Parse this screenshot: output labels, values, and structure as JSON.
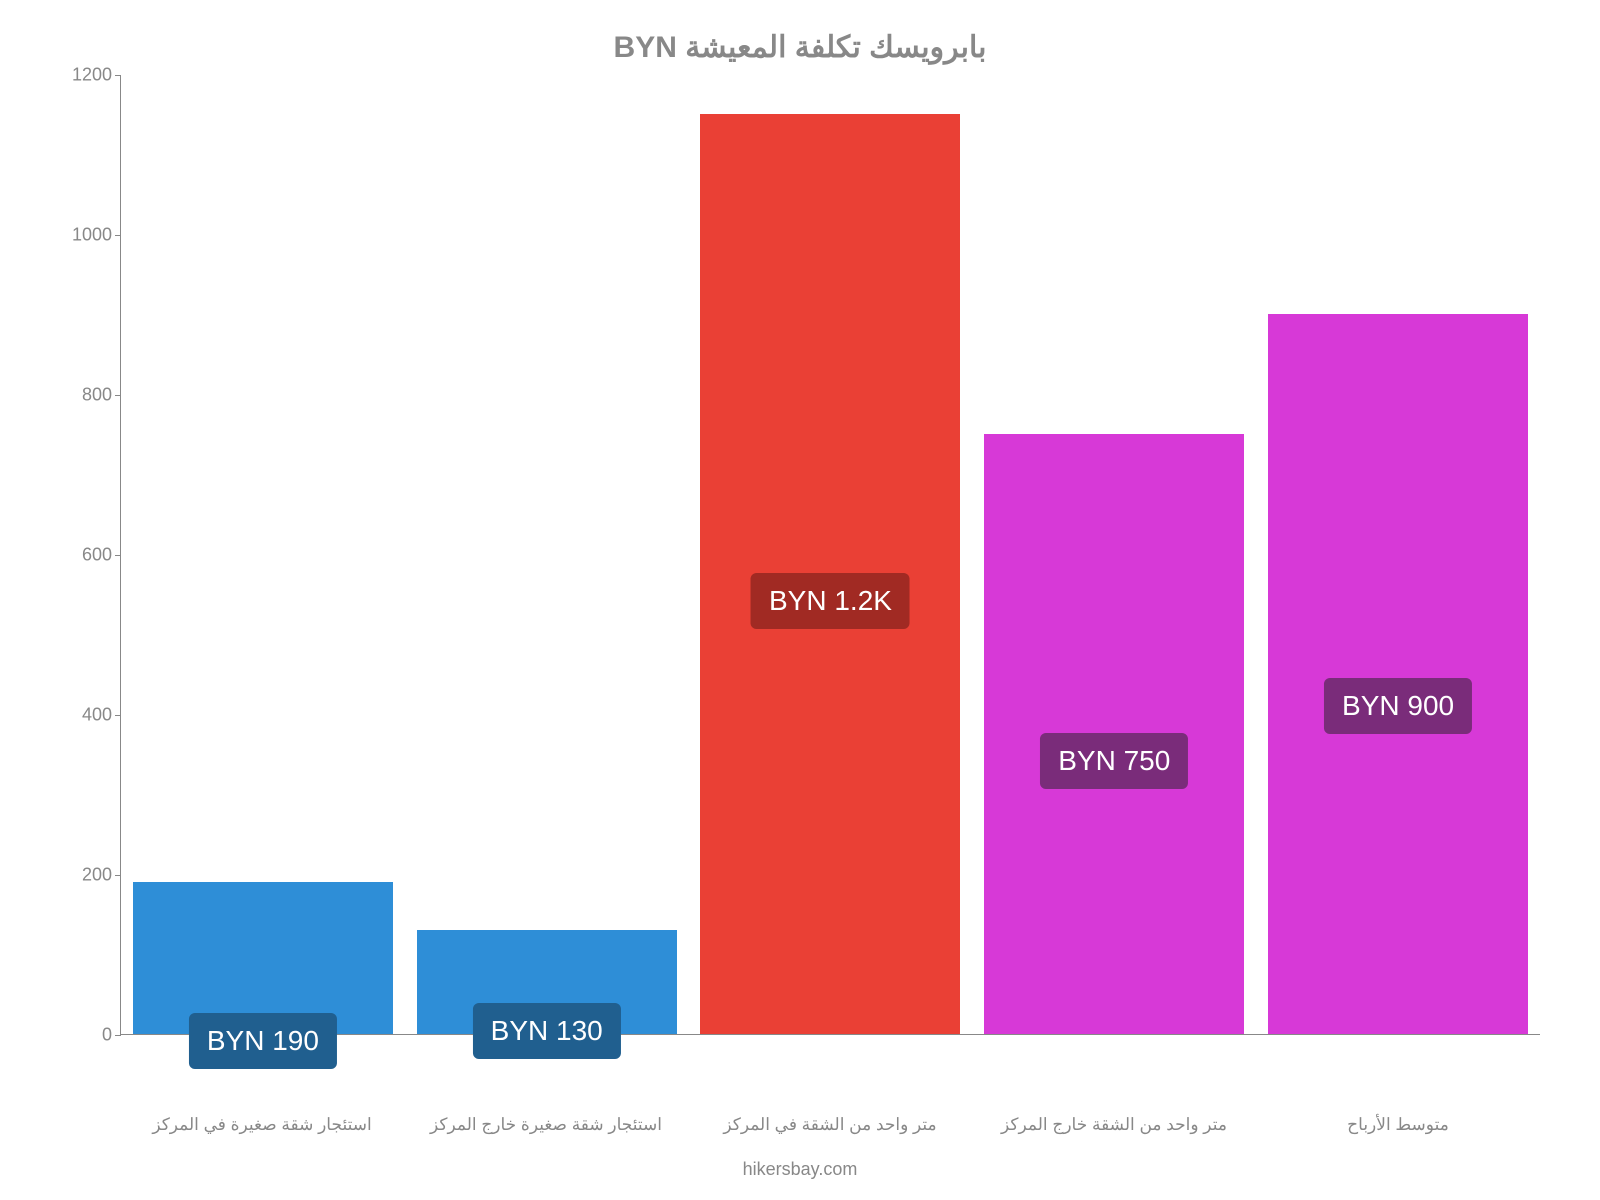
{
  "chart": {
    "type": "bar",
    "title": "بابرويسك تكلفة المعيشة BYN",
    "title_color": "#888888",
    "title_fontsize": 30,
    "background_color": "#ffffff",
    "axis_color": "#888888",
    "ylim": [
      0,
      1200
    ],
    "ytick_step": 200,
    "yticks": [
      0,
      200,
      400,
      600,
      800,
      1000,
      1200
    ],
    "label_fontsize": 17,
    "ylabel_fontsize": 18,
    "bars": [
      {
        "category": "استئجار شقة صغيرة في المركز",
        "value": 190,
        "display_label": "BYN 190",
        "bar_color": "#2e8ed7",
        "label_bg": "#205f8f",
        "label_offset": -35
      },
      {
        "category": "استئجار شقة صغيرة خارج المركز",
        "value": 130,
        "display_label": "BYN 130",
        "bar_color": "#2e8ed7",
        "label_bg": "#205f8f",
        "label_offset": -25
      },
      {
        "category": "متر واحد من الشقة في المركز",
        "value": 1150,
        "display_label": "BYN 1.2K",
        "bar_color": "#ea4035",
        "label_bg": "#a12a23",
        "label_offset": 405
      },
      {
        "category": "متر واحد من الشقة خارج المركز",
        "value": 750,
        "display_label": "BYN 750",
        "bar_color": "#d739d7",
        "label_bg": "#7a2c7a",
        "label_offset": 245
      },
      {
        "category": "متوسط الأرباح",
        "value": 900,
        "display_label": "BYN 900",
        "bar_color": "#d739d7",
        "label_bg": "#7a2c7a",
        "label_offset": 300
      }
    ],
    "watermark": "hikersbay.com"
  }
}
